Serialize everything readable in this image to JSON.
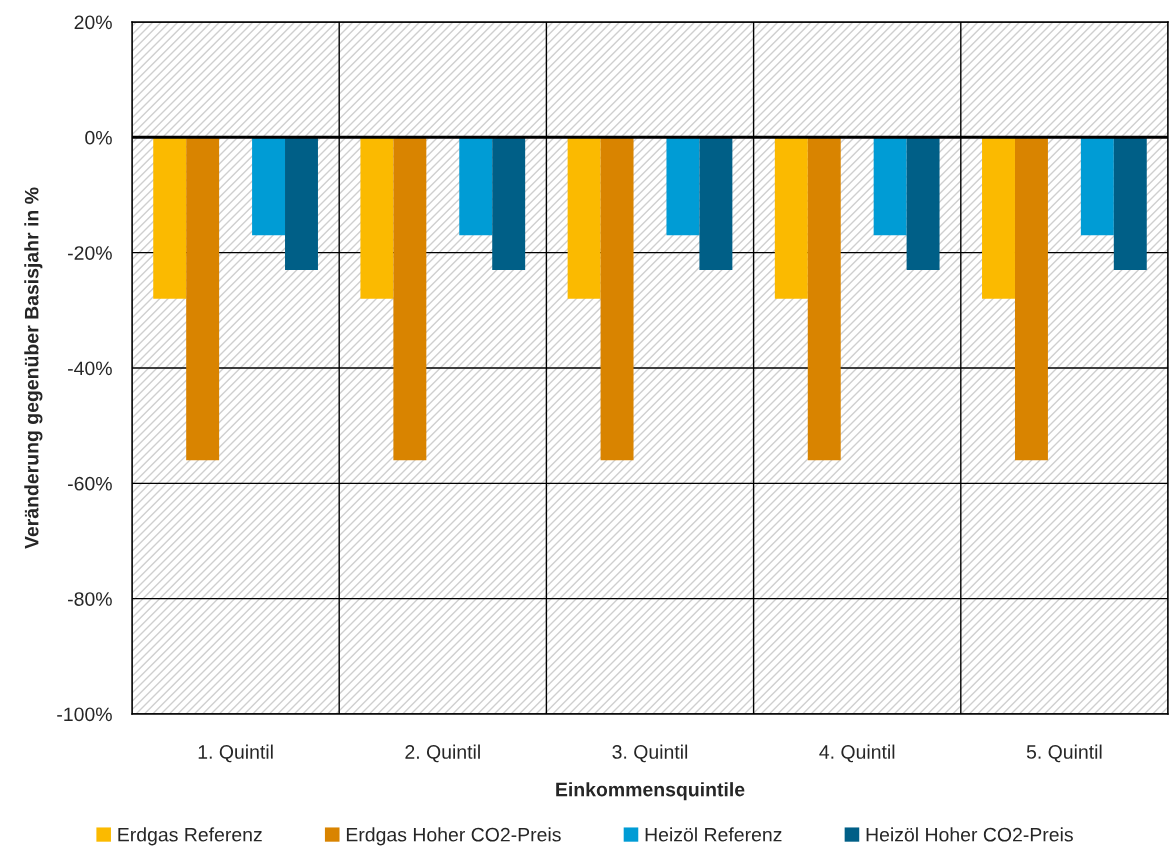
{
  "chart_data": {
    "type": "bar",
    "xlabel": "Einkommensquintile",
    "ylabel": "Veränderung gegenüber Basisjahr in %",
    "categories": [
      "1. Quintil",
      "2. Quintil",
      "3. Quintil",
      "4. Quintil",
      "5. Quintil"
    ],
    "series": [
      {
        "name": "Erdgas Referenz",
        "color": "#fbba00",
        "values": [
          -28,
          -28,
          -28,
          -28,
          -28
        ]
      },
      {
        "name": "Erdgas Hoher CO2-Preis",
        "color": "#d98400",
        "values": [
          -56,
          -56,
          -56,
          -56,
          -56
        ]
      },
      {
        "name": "Heizöl Referenz",
        "color": "#009cd5",
        "values": [
          -17,
          -17,
          -17,
          -17,
          -17
        ]
      },
      {
        "name": "Heizöl Hoher CO2-Preis",
        "color": "#005f87",
        "values": [
          -23,
          -23,
          -23,
          -23,
          -23
        ]
      }
    ],
    "ylim": [
      -100,
      20
    ],
    "yticks": [
      {
        "value": 20,
        "label": "20%"
      },
      {
        "value": 0,
        "label": "0%"
      },
      {
        "value": -20,
        "label": "-20%"
      },
      {
        "value": -40,
        "label": "-40%"
      },
      {
        "value": -60,
        "label": "-60%"
      },
      {
        "value": -80,
        "label": "-80%"
      },
      {
        "value": -100,
        "label": "-100%"
      }
    ],
    "grid": true,
    "legend": "bottom",
    "ref_lines": [
      {
        "axis": "y",
        "value": 0,
        "color": "#000000"
      }
    ]
  }
}
